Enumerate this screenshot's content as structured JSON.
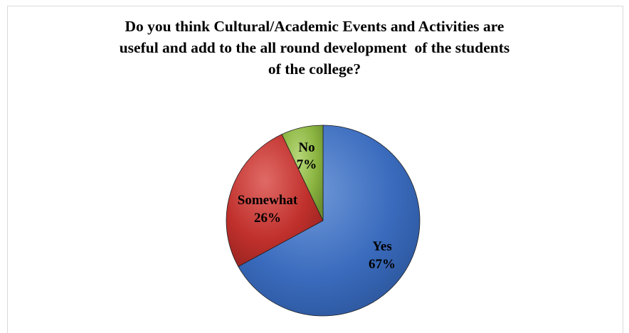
{
  "chart_data": {
    "type": "pie",
    "title_lines": [
      "Do you think Cultural/Academic Events and Activities are",
      "useful and add to the all round development  of the students",
      "of the college?"
    ],
    "slices": [
      {
        "label": "Yes",
        "value": 67,
        "percent_label": "67%",
        "color": "#3a6bbd"
      },
      {
        "label": "Somewhat",
        "value": 26,
        "percent_label": "26%",
        "color": "#c0302c"
      },
      {
        "label": "No",
        "value": 7,
        "percent_label": "7%",
        "color": "#8ab440"
      }
    ],
    "legend": "none"
  }
}
